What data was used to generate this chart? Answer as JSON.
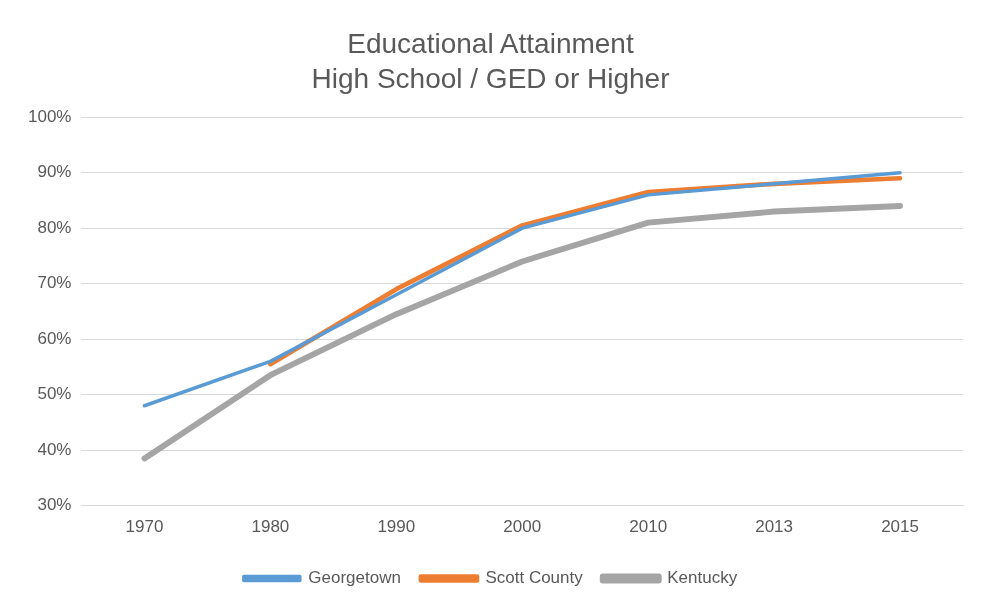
{
  "chart_data": {
    "type": "line",
    "title": "Educational Attainment",
    "subtitle": "High School / GED or Higher",
    "categories": [
      "1970",
      "1980",
      "1990",
      "2000",
      "2010",
      "2013",
      "2015"
    ],
    "series": [
      {
        "name": "Georgetown",
        "color": "#5b9bd5",
        "values": [
          48,
          56,
          68,
          80,
          86,
          88,
          90
        ]
      },
      {
        "name": "Scott County",
        "color": "#ed7d31",
        "values": [
          null,
          55.5,
          69,
          80.5,
          86.5,
          88,
          89
        ]
      },
      {
        "name": "Kentucky",
        "color": "#a5a5a5",
        "values": [
          38.5,
          53.5,
          64.5,
          74,
          81,
          83,
          84
        ]
      }
    ],
    "ylim": [
      30,
      100
    ],
    "yticks": [
      {
        "value": 30,
        "label": "30%"
      },
      {
        "value": 40,
        "label": "40%"
      },
      {
        "value": 50,
        "label": "50%"
      },
      {
        "value": 60,
        "label": "60%"
      },
      {
        "value": 70,
        "label": "70%"
      },
      {
        "value": 80,
        "label": "80%"
      },
      {
        "value": 90,
        "label": "90%"
      },
      {
        "value": 100,
        "label": "100%"
      }
    ],
    "grid": "y",
    "legend": "bottom",
    "marker": "none",
    "line_style": "solid"
  }
}
